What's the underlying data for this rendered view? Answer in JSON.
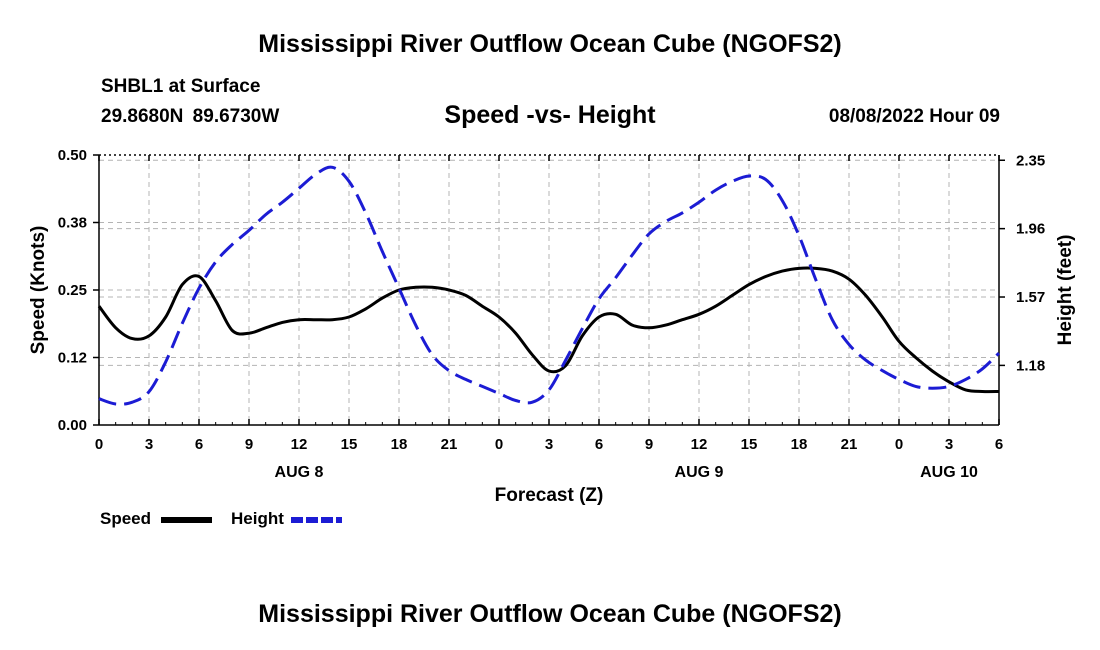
{
  "header": {
    "title": "Mississippi River Outflow Ocean Cube (NGOFS2)",
    "station": "SHBL1 at Surface",
    "coords": "29.8680N  89.6730W",
    "subtitle": "Speed -vs- Height",
    "datetime": "08/08/2022 Hour 09"
  },
  "footer": {
    "title": "Mississippi River Outflow Ocean Cube (NGOFS2)"
  },
  "legend": {
    "speed_label": "Speed",
    "height_label": "Height"
  },
  "chart_data": {
    "type": "line",
    "title": "Speed -vs- Height",
    "xlabel": "Forecast (Z)",
    "ylabel": "Speed (Knots)",
    "y2label": "Height (feet)",
    "xlim": [
      0,
      54
    ],
    "ylim": [
      0,
      0.5
    ],
    "y2lim": [
      0.84,
      2.38
    ],
    "x_ticks": [
      0,
      3,
      6,
      9,
      12,
      15,
      18,
      21,
      24,
      27,
      30,
      33,
      36,
      39,
      42,
      45,
      48,
      51,
      54
    ],
    "x_tick_labels": [
      "0",
      "3",
      "6",
      "9",
      "12",
      "15",
      "18",
      "21",
      "0",
      "3",
      "6",
      "9",
      "12",
      "15",
      "18",
      "21",
      "0",
      "3",
      "6"
    ],
    "y_ticks": [
      0,
      0.125,
      0.25,
      0.375,
      0.5
    ],
    "y_tick_labels": [
      "0.00",
      "0.12",
      "0.25",
      "0.38",
      "0.50"
    ],
    "y2_ticks": [
      1.18,
      1.57,
      1.96,
      2.35
    ],
    "y2_tick_labels": [
      "1.18",
      "1.57",
      "1.96",
      "2.35"
    ],
    "day_labels": [
      {
        "x": 12,
        "label": "AUG 8"
      },
      {
        "x": 36,
        "label": "AUG 9"
      },
      {
        "x": 51,
        "label": "AUG 10"
      }
    ],
    "grid": true,
    "legend_position": "bottom-left",
    "series": [
      {
        "name": "Speed",
        "axis": "left",
        "color": "#000000",
        "dash": "solid",
        "x": [
          0,
          1,
          2,
          3,
          4,
          5,
          6,
          7,
          8,
          9,
          10,
          11,
          12,
          13,
          14,
          15,
          16,
          17,
          18,
          19,
          20,
          21,
          22,
          23,
          24,
          25,
          26,
          27,
          28,
          29,
          30,
          31,
          32,
          33,
          34,
          35,
          36,
          37,
          38,
          39,
          40,
          41,
          42,
          43,
          44,
          45,
          46,
          47,
          48,
          49,
          50,
          51,
          52,
          53,
          54
        ],
        "values": [
          0.22,
          0.18,
          0.16,
          0.165,
          0.2,
          0.26,
          0.275,
          0.23,
          0.175,
          0.17,
          0.18,
          0.19,
          0.195,
          0.195,
          0.195,
          0.2,
          0.215,
          0.235,
          0.25,
          0.255,
          0.255,
          0.25,
          0.24,
          0.22,
          0.2,
          0.17,
          0.13,
          0.1,
          0.11,
          0.165,
          0.2,
          0.205,
          0.185,
          0.18,
          0.185,
          0.195,
          0.205,
          0.22,
          0.24,
          0.26,
          0.275,
          0.285,
          0.29,
          0.29,
          0.285,
          0.27,
          0.24,
          0.2,
          0.155,
          0.125,
          0.1,
          0.08,
          0.065,
          0.062,
          0.062
        ]
      },
      {
        "name": "Height",
        "axis": "right",
        "color": "#1c1cd4",
        "dash": "dashed",
        "x": [
          0,
          1,
          2,
          3,
          4,
          5,
          6,
          7,
          8,
          9,
          10,
          11,
          12,
          13,
          14,
          15,
          16,
          17,
          18,
          19,
          20,
          21,
          22,
          23,
          24,
          25,
          26,
          27,
          28,
          29,
          30,
          31,
          32,
          33,
          34,
          35,
          36,
          37,
          38,
          39,
          40,
          41,
          42,
          43,
          44,
          45,
          46,
          47,
          48,
          49,
          50,
          51,
          52,
          53,
          54
        ],
        "values": [
          0.99,
          0.96,
          0.97,
          1.03,
          1.2,
          1.42,
          1.62,
          1.77,
          1.87,
          1.95,
          2.04,
          2.11,
          2.19,
          2.27,
          2.31,
          2.23,
          2.05,
          1.83,
          1.62,
          1.41,
          1.24,
          1.15,
          1.1,
          1.06,
          1.02,
          0.98,
          0.97,
          1.04,
          1.21,
          1.39,
          1.56,
          1.68,
          1.81,
          1.93,
          2,
          2.05,
          2.11,
          2.18,
          2.23,
          2.26,
          2.24,
          2.12,
          1.92,
          1.67,
          1.44,
          1.3,
          1.21,
          1.15,
          1.1,
          1.06,
          1.05,
          1.06,
          1.1,
          1.16,
          1.25
        ]
      }
    ]
  }
}
